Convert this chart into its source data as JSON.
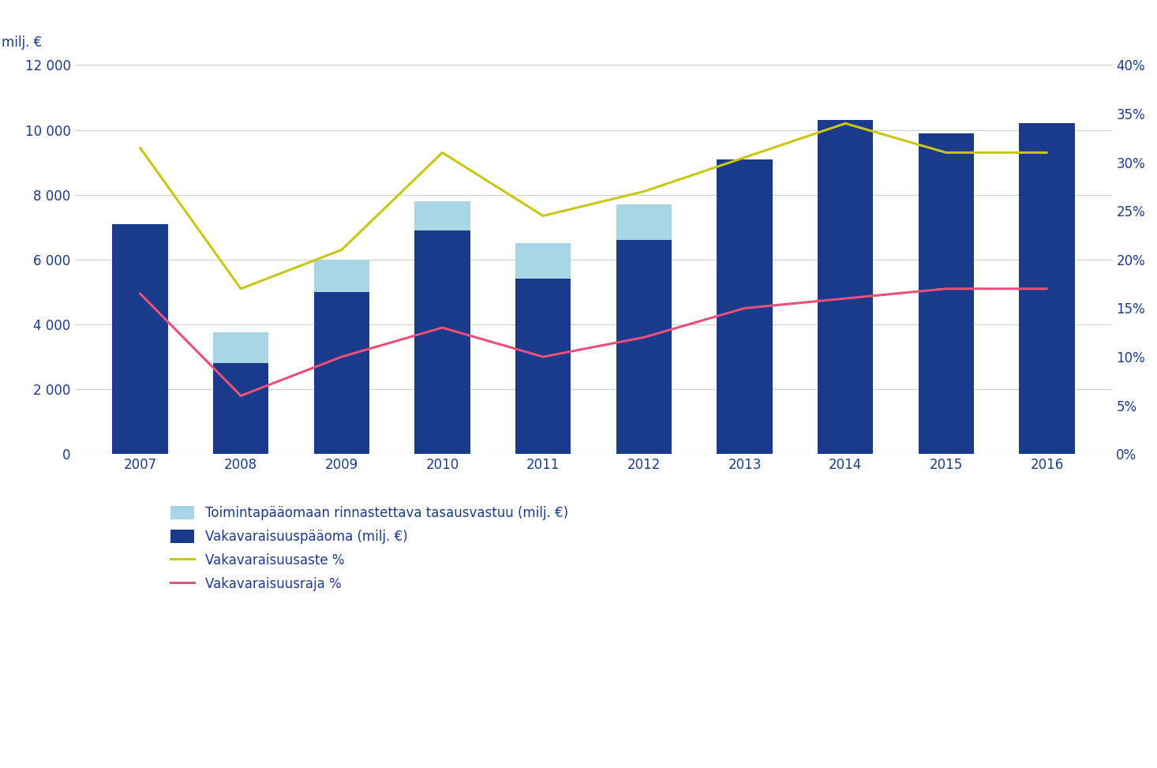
{
  "years": [
    2007,
    2008,
    2009,
    2010,
    2011,
    2012,
    2013,
    2014,
    2015,
    2016
  ],
  "dark_blue": [
    7100,
    2800,
    5000,
    6900,
    5400,
    6600,
    9100,
    10300,
    9900,
    10200
  ],
  "light_blue": [
    0,
    950,
    1000,
    900,
    1100,
    1100,
    0,
    0,
    0,
    0
  ],
  "yellow_line": [
    31.5,
    17.0,
    21.0,
    31.0,
    24.5,
    27.0,
    30.5,
    34.0,
    31.0,
    31.0
  ],
  "pink_line": [
    16.5,
    6.0,
    10.0,
    13.0,
    10.0,
    12.0,
    15.0,
    16.0,
    17.0,
    17.0
  ],
  "dark_blue_color": "#1a3a8c",
  "light_blue_color": "#a8d4e8",
  "yellow_color": "#c8c814",
  "pink_color": "#e8507a",
  "background_color": "#ffffff",
  "left_ylabel": "milj. €",
  "left_ylim": [
    0,
    12000
  ],
  "left_yticks": [
    0,
    2000,
    4000,
    6000,
    8000,
    10000,
    12000
  ],
  "left_yticklabels": [
    "0",
    "2 000",
    "4 000",
    "6 000",
    "8 000",
    "10 000",
    "12 000"
  ],
  "right_ylim": [
    0,
    40
  ],
  "right_yticks": [
    0,
    5,
    10,
    15,
    20,
    25,
    30,
    35,
    40
  ],
  "right_yticklabels": [
    "0%",
    "5%",
    "10%",
    "15%",
    "20%",
    "25%",
    "30%",
    "35%",
    "40%"
  ],
  "legend_label1": "Toimintapääomaan rinnastettava tasausvastuu (milj. €)",
  "legend_label2": "Vakavaraisuuspääoma (milj. €)",
  "legend_label3": "Vakavaraisuusaste %",
  "legend_label4": "Vakavaraisuusraja %",
  "bar_width": 0.55,
  "grid_color": "#d0d0d0",
  "text_color": "#1a3a8c",
  "font_size_ticks": 12,
  "font_size_legend": 12
}
